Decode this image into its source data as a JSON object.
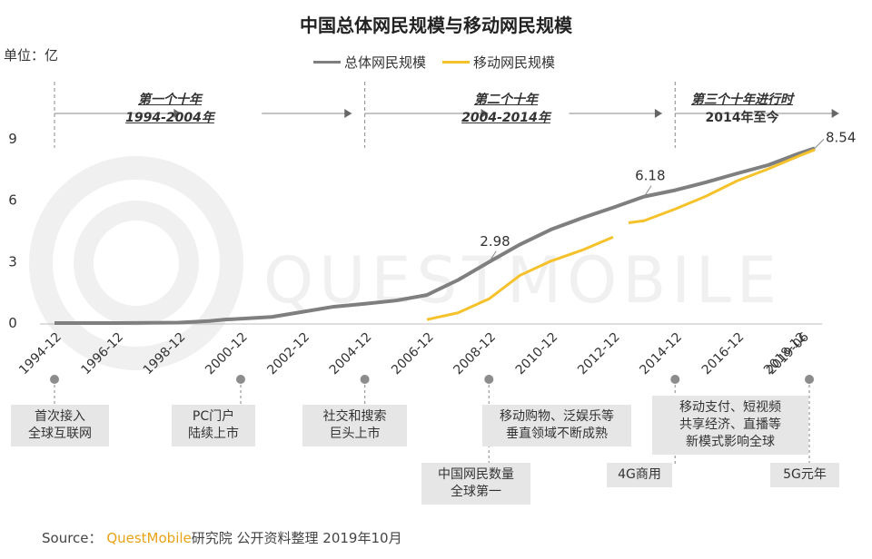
{
  "chart_data": {
    "type": "line",
    "title": "中国总体网民规模与移动网民规模",
    "unit_label": "单位：亿",
    "ylim": [
      0,
      9
    ],
    "yticks": [
      "0",
      "3",
      "6",
      "9"
    ],
    "x_tick_labels": [
      "1994-12",
      "1996-12",
      "1998-12",
      "2000-12",
      "2002-12",
      "2004-12",
      "2006-12",
      "2008-12",
      "2010-12",
      "2012-12",
      "2014-12",
      "2016-12",
      "2018-12",
      "2019-06"
    ],
    "legend_position": "top-center",
    "series": [
      {
        "name": "总体网民规模",
        "color": "#7f7f7f",
        "points": [
          [
            1994.92,
            0.0
          ],
          [
            1996.92,
            0.0
          ],
          [
            1998.92,
            0.02
          ],
          [
            1999.92,
            0.1
          ],
          [
            2000.42,
            0.17
          ],
          [
            2001.92,
            0.3
          ],
          [
            2002.92,
            0.55
          ],
          [
            2003.92,
            0.8
          ],
          [
            2004.92,
            0.94
          ],
          [
            2005.92,
            1.1
          ],
          [
            2006.92,
            1.37
          ],
          [
            2007.92,
            2.1
          ],
          [
            2008.92,
            2.98
          ],
          [
            2009.92,
            3.84
          ],
          [
            2010.92,
            4.57
          ],
          [
            2011.92,
            5.13
          ],
          [
            2012.92,
            5.64
          ],
          [
            2013.92,
            6.18
          ],
          [
            2014.92,
            6.49
          ],
          [
            2015.92,
            6.88
          ],
          [
            2016.92,
            7.31
          ],
          [
            2017.92,
            7.72
          ],
          [
            2018.92,
            8.29
          ],
          [
            2019.42,
            8.54
          ]
        ]
      },
      {
        "name": "移动网民规模",
        "color": "#f5c22b",
        "segments": [
          [
            [
              2006.92,
              0.17
            ],
            [
              2007.92,
              0.5
            ],
            [
              2008.92,
              1.18
            ],
            [
              2009.92,
              2.33
            ],
            [
              2010.92,
              3.03
            ],
            [
              2011.92,
              3.56
            ],
            [
              2012.92,
              4.2
            ]
          ],
          [
            [
              2013.42,
              4.9
            ],
            [
              2013.92,
              5.0
            ],
            [
              2014.92,
              5.57
            ],
            [
              2015.92,
              6.2
            ],
            [
              2016.92,
              6.95
            ],
            [
              2017.92,
              7.53
            ],
            [
              2018.92,
              8.17
            ],
            [
              2019.42,
              8.47
            ]
          ]
        ]
      }
    ],
    "data_labels": [
      {
        "text": "2.98",
        "x": 2008.92,
        "y": 2.98
      },
      {
        "text": "6.18",
        "x": 2013.92,
        "y": 6.18
      },
      {
        "text": "8.54",
        "x": 2019.42,
        "y": 8.54
      }
    ]
  },
  "eras": [
    {
      "line1": "第一个十年",
      "line2": "1994-2004年"
    },
    {
      "line1": "第二个十年",
      "line2": "2004-2014年"
    },
    {
      "line1": "第三个十年进行时",
      "line2": "2014年至今"
    }
  ],
  "events": [
    {
      "text": "首次接入\n全球互联网",
      "year": "1994-12"
    },
    {
      "text": "PC门户\n陆续上市",
      "year": "2000-12"
    },
    {
      "text": "社交和搜索\n巨头上市",
      "year": "2004-12"
    },
    {
      "text": "中国网民数量\n全球第一",
      "year": "2008-12"
    },
    {
      "text": "移动购物、泛娱乐等\n垂直领域不断成熟",
      "year": ""
    },
    {
      "text": "4G商用",
      "year": "2014-12"
    },
    {
      "text": "移动支付、短视频\n共享经济、直播等\n新模式影响全球",
      "year": ""
    },
    {
      "text": "5G元年",
      "year": "2019-06"
    }
  ],
  "source": {
    "prefix": "Source：",
    "brand": "QuestMobile",
    "suffix": "研究院 公开资料整理 2019年10月"
  },
  "watermark": "QUESTMOBILE"
}
